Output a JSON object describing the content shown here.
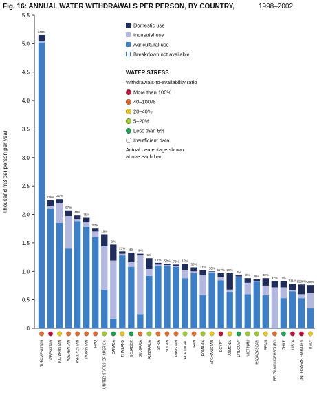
{
  "chart_data": {
    "type": "stacked_bar",
    "title": "Fig. 16: ANNUAL WATER WITHDRAWALS PER PERSON, BY COUNTRY,",
    "title_years": "1998–2002",
    "y_label": "Thousand m3 per person per year",
    "ylim": [
      0,
      5.5
    ],
    "yticks": [
      0,
      0.5,
      {
        "value": 1,
        "label": "1.0"
      },
      1.5,
      {
        "value": 2,
        "label": "2.0"
      },
      2.5,
      {
        "value": 3,
        "label": "3.0"
      },
      3.5,
      {
        "value": 4,
        "label": "4.0"
      },
      4.5,
      {
        "value": 5,
        "label": "5.0"
      },
      5.5
    ],
    "categories": [
      "TURKMENISTAN",
      "UZBEKISTAN",
      "KAZAKHSTAN",
      "AZERBAIJAN",
      "KYRGYZSTAN",
      "TAJIKISTAN",
      "IRAQ",
      "UNITED STATES OF AMERICA",
      "CANADA",
      "THAILAND",
      "ECUADOR",
      "BULGARIA",
      "AUSTRALIA",
      "SYRIA",
      "SUDAN",
      "PAKISTAN",
      "PORTUGAL",
      "IRAN",
      "ROMANIA",
      "AFGHANISTAN",
      "EGYPT",
      "ARMENIA",
      "URUGUAY",
      "VIET NAM",
      "MADAGASCAR",
      "SPAIN",
      "BELGIUM/LUXEMBOURG",
      "CHILE",
      "LIBYA",
      "UNITED ARAB EMIRATES",
      "ITALY"
    ],
    "series": [
      {
        "name": "Agricultural use",
        "color": "#3b7fc9",
        "values": [
          5.02,
          2.1,
          1.85,
          1.4,
          1.88,
          1.78,
          1.6,
          0.68,
          0.17,
          1.28,
          1.08,
          0.25,
          0.92,
          1.1,
          1.1,
          1.08,
          0.88,
          0.97,
          0.58,
          0.98,
          0.84,
          0.64,
          0.9,
          0.6,
          0.82,
          0.58,
          0.01,
          0.53,
          0.65,
          0.53,
          0.35
        ]
      },
      {
        "name": "Industrial use",
        "color": "#b3b8e0",
        "values": [
          0.03,
          0.05,
          0.35,
          0.57,
          0.04,
          0.08,
          0.1,
          0.76,
          1.02,
          0.03,
          0.08,
          1.03,
          0.12,
          0.02,
          0.01,
          0.02,
          0.14,
          0.03,
          0.35,
          0.01,
          0.06,
          0.04,
          0.01,
          0.2,
          0.01,
          0.17,
          0.71,
          0.19,
          0.02,
          0.07,
          0.27
        ]
      },
      {
        "name": "Domestic use",
        "color": "#1f2d5c",
        "values": [
          0.1,
          0.1,
          0.07,
          0.1,
          0.06,
          0.08,
          0.05,
          0.21,
          0.28,
          0.04,
          0.17,
          0.03,
          0.19,
          0.03,
          0.02,
          0.02,
          0.11,
          0.07,
          0.09,
          0.01,
          0.07,
          0.29,
          0.02,
          0.08,
          0.03,
          0.13,
          0.11,
          0.11,
          0.11,
          0.17,
          0.14
        ]
      }
    ],
    "legend_order": [
      2,
      1,
      0
    ],
    "breakdown_label": "Breakdown not available",
    "percent_labels": [
      "100%",
      "116%",
      "31%",
      "57%",
      "48%",
      "75%",
      "57%",
      "19%",
      "2%",
      "21%",
      "4%",
      "49%",
      "6%",
      "76%",
      "58%",
      "76%",
      "15%",
      "53%",
      "11%",
      "36%",
      "117%",
      "28%",
      "2%",
      "8%",
      "5%",
      "32%",
      "42%",
      "1%",
      "711%",
      "1538%",
      "29%"
    ],
    "stress_colors": [
      "#e06a2a",
      "#c0103a",
      "#e8c81c",
      "#e06a2a",
      "#e06a2a",
      "#e06a2a",
      "#e06a2a",
      "#9ccc2c",
      "#1aa050",
      "#e8c81c",
      "#1aa050",
      "#e06a2a",
      "#9ccc2c",
      "#e06a2a",
      "#e06a2a",
      "#e06a2a",
      "#9ccc2c",
      "#e06a2a",
      "#9ccc2c",
      "#e8c81c",
      "#c0103a",
      "#e8c81c",
      "#1aa050",
      "#9ccc2c",
      "#9ccc2c",
      "#e8c81c",
      "#e06a2a",
      "#1aa050",
      "#c0103a",
      "#c0103a",
      "#e8c81c"
    ],
    "stress_title": "WATER STRESS",
    "stress_subtitle": "Withdrawals-to-availability ratio",
    "stress_legend": [
      {
        "label": "More than 100%",
        "color": "#c0103a"
      },
      {
        "label": "40–100%",
        "color": "#e06a2a"
      },
      {
        "label": "20–40%",
        "color": "#e8c81c"
      },
      {
        "label": "5–20%",
        "color": "#9ccc2c"
      },
      {
        "label": "Less than 5%",
        "color": "#1aa050"
      },
      {
        "label": "Insufficient data",
        "color": "#ffffff"
      }
    ],
    "stress_note": [
      "Actual percentage shown",
      "above each bar"
    ]
  }
}
